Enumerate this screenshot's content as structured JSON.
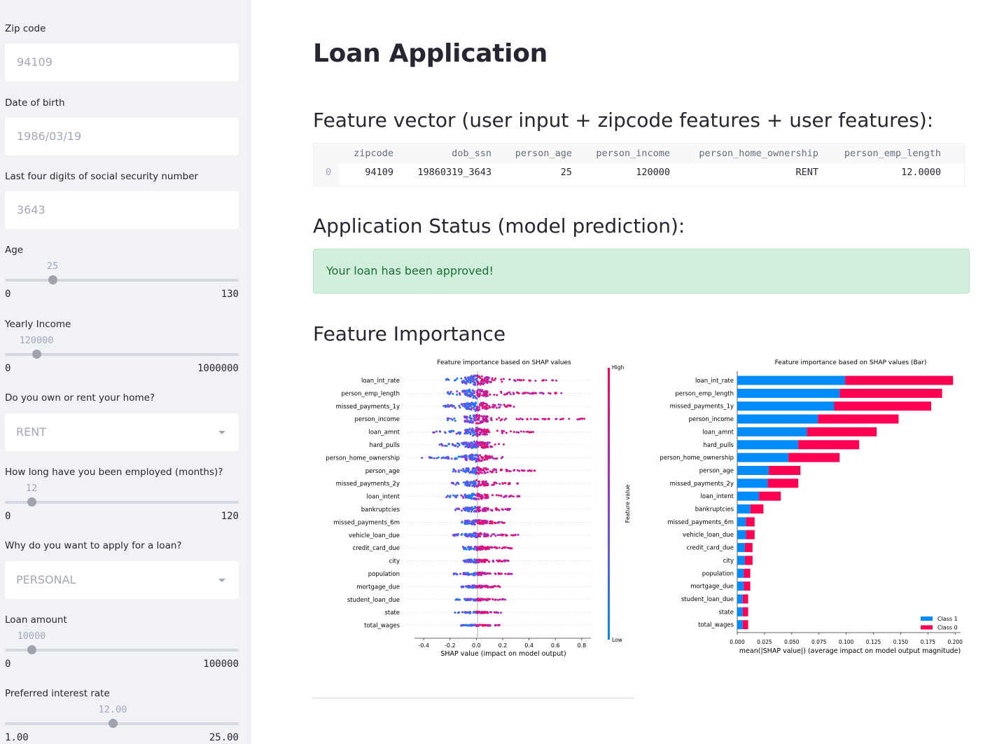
{
  "sidebar": {
    "zip": {
      "label": "Zip code",
      "value": "94109"
    },
    "dob": {
      "label": "Date of birth",
      "value": "1986/03/19"
    },
    "ssn": {
      "label": "Last four digits of social security number",
      "value": "3643"
    },
    "age": {
      "label": "Age",
      "value": "25",
      "min": "0",
      "max": "130",
      "fraction": 0.1923
    },
    "income": {
      "label": "Yearly Income",
      "value": "120000",
      "min": "0",
      "max": "1000000",
      "fraction": 0.12
    },
    "home": {
      "label": "Do you own or rent your home?",
      "value": "RENT"
    },
    "emp": {
      "label": "How long have you been employed (months)?",
      "value": "12",
      "min": "0",
      "max": "120",
      "fraction": 0.1
    },
    "intent": {
      "label": "Why do you want to apply for a loan?",
      "value": "PERSONAL"
    },
    "amount": {
      "label": "Loan amount",
      "value": "10000",
      "min": "0",
      "max": "100000",
      "fraction": 0.1
    },
    "rate": {
      "label": "Preferred interest rate",
      "value": "12.00",
      "min": "1.00",
      "max": "25.00",
      "fraction": 0.4583
    }
  },
  "main": {
    "title": "Loan Application",
    "feature_vector_heading": "Feature vector (user input + zipcode features + user features):",
    "table": {
      "columns": [
        "zipcode",
        "dob_ssn",
        "person_age",
        "person_income",
        "person_home_ownership",
        "person_emp_length"
      ],
      "rows": [
        {
          "index": "0",
          "values": [
            "94109",
            "19860319_3643",
            "25",
            "120000",
            "RENT",
            "12.0000"
          ]
        }
      ]
    },
    "status_heading": "Application Status (model prediction):",
    "status_message": "Your loan has been approved!",
    "importance_heading": "Feature Importance"
  },
  "chart_data": [
    {
      "type": "scatter",
      "title": "Feature importance based on SHAP values",
      "xlabel": "SHAP value (impact on model output)",
      "xlim": [
        -0.47,
        0.87
      ],
      "xticks": [
        "-0.4",
        "-0.2",
        "0.0",
        "0.2",
        "0.4",
        "0.6",
        "0.8"
      ],
      "xtick_values": [
        -0.4,
        -0.2,
        0.0,
        0.2,
        0.4,
        0.6,
        0.8
      ],
      "colorbar": {
        "label": "Feature value",
        "high": "High",
        "low": "Low",
        "high_color": "#ff0052",
        "low_color": "#008bfb"
      },
      "features": [
        "loan_int_rate",
        "person_emp_length",
        "missed_payments_1y",
        "person_income",
        "loan_amnt",
        "hard_pulls",
        "person_home_ownership",
        "person_age",
        "missed_payments_2y",
        "loan_intent",
        "bankruptcies",
        "missed_payments_6m",
        "vehicle_loan_due",
        "credit_card_due",
        "city",
        "population",
        "mortgage_due",
        "student_loan_due",
        "state",
        "total_wages"
      ],
      "ranges": [
        [
          -0.23,
          0.62
        ],
        [
          -0.22,
          0.66
        ],
        [
          -0.25,
          0.29
        ],
        [
          -0.22,
          0.82
        ],
        [
          -0.38,
          0.44
        ],
        [
          -0.29,
          0.21
        ],
        [
          -0.44,
          0.22
        ],
        [
          -0.23,
          0.45
        ],
        [
          -0.21,
          0.32
        ],
        [
          -0.23,
          0.35
        ],
        [
          -0.16,
          0.29
        ],
        [
          -0.11,
          0.22
        ],
        [
          -0.2,
          0.32
        ],
        [
          -0.13,
          0.28
        ],
        [
          -0.14,
          0.25
        ],
        [
          -0.18,
          0.28
        ],
        [
          -0.12,
          0.18
        ],
        [
          -0.17,
          0.23
        ],
        [
          -0.2,
          0.19
        ],
        [
          -0.15,
          0.18
        ]
      ]
    },
    {
      "type": "bar",
      "title": "Feature importance based on SHAP values (Bar)",
      "xlabel": "mean(|SHAP value|) (average impact on model output magnitude)",
      "xlim": [
        0,
        0.205
      ],
      "xticks": [
        "0.000",
        "0.025",
        "0.050",
        "0.075",
        "0.100",
        "0.125",
        "0.150",
        "0.175",
        "0.200"
      ],
      "xtick_values": [
        0,
        0.025,
        0.05,
        0.075,
        0.1,
        0.125,
        0.15,
        0.175,
        0.2
      ],
      "legend": "bottom-right",
      "categories": [
        "loan_int_rate",
        "person_emp_length",
        "missed_payments_1y",
        "person_income",
        "loan_amnt",
        "hard_pulls",
        "person_home_ownership",
        "person_age",
        "missed_payments_2y",
        "loan_intent",
        "bankruptcies",
        "missed_payments_6m",
        "vehicle_loan_due",
        "credit_card_due",
        "city",
        "population",
        "mortgage_due",
        "student_loan_due",
        "state",
        "total_wages"
      ],
      "series": [
        {
          "name": "Class 1",
          "color": "#008bfb",
          "values": [
            0.099,
            0.094,
            0.089,
            0.074,
            0.064,
            0.056,
            0.047,
            0.029,
            0.028,
            0.02,
            0.012,
            0.008,
            0.008,
            0.007,
            0.007,
            0.006,
            0.006,
            0.005,
            0.005,
            0.005
          ]
        },
        {
          "name": "Class 0",
          "color": "#ff0052",
          "values": [
            0.099,
            0.094,
            0.089,
            0.074,
            0.064,
            0.056,
            0.047,
            0.029,
            0.028,
            0.02,
            0.012,
            0.008,
            0.008,
            0.007,
            0.007,
            0.006,
            0.006,
            0.005,
            0.005,
            0.005
          ]
        }
      ]
    }
  ]
}
